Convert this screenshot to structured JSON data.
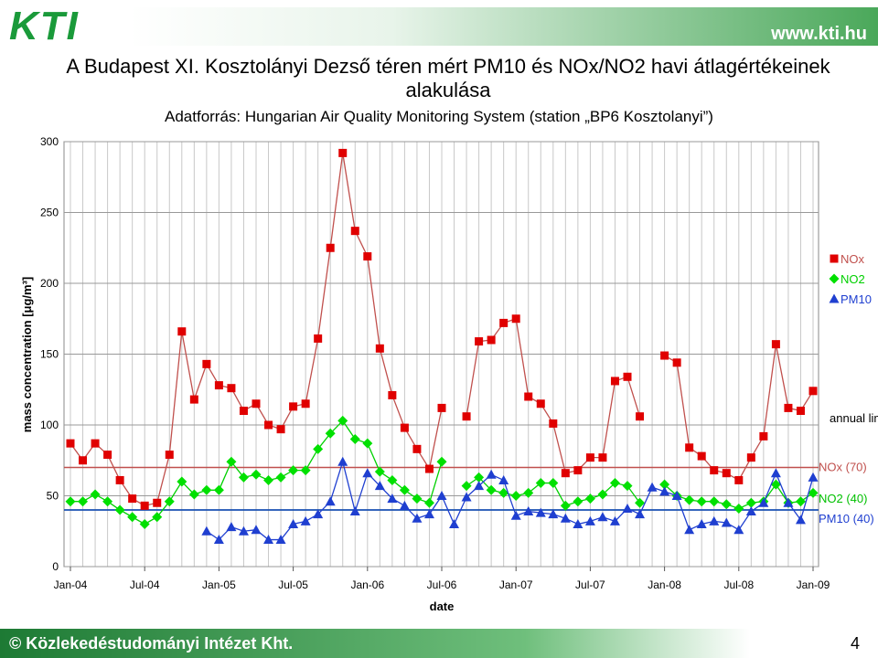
{
  "header": {
    "logo": "KTI",
    "url": "www.kti.hu"
  },
  "title": "A Budapest XI. Kosztolányi Dezső téren mért PM10 és NOx/NO2 havi átlagértékeinek alakulása",
  "source": "Adatforrás: Hungarian Air Quality Monitoring System (station „BP6 Kosztolanyi”)",
  "footer": {
    "copyright": "© Közlekedéstudományi Intézet Kht.",
    "page": "4"
  },
  "chart_data": {
    "type": "line",
    "x_label": "date",
    "y_label": "mass concentration [μg/m³]",
    "categories": [
      "Jan-04",
      null,
      null,
      null,
      null,
      null,
      "Jul-04",
      null,
      null,
      null,
      null,
      null,
      "Jan-05",
      null,
      null,
      null,
      null,
      null,
      "Jul-05",
      null,
      null,
      null,
      null,
      null,
      "Jan-06",
      null,
      null,
      null,
      null,
      null,
      "Jul-06",
      null,
      null,
      null,
      null,
      null,
      "Jan-07",
      null,
      null,
      null,
      null,
      null,
      "Jul-07",
      null,
      null,
      null,
      null,
      null,
      "Jan-08",
      null,
      null,
      null,
      null,
      null,
      "Jul-08",
      null,
      null,
      null,
      null,
      null,
      "Jan-09"
    ],
    "ylim": [
      0,
      300
    ],
    "yticks": [
      0,
      50,
      100,
      150,
      200,
      250,
      300
    ],
    "grid": true,
    "legend": "right",
    "series": [
      {
        "name": "NOx",
        "color": "#e00000",
        "line_color": "#c0504d",
        "marker": "square",
        "values": [
          87,
          75,
          87,
          79,
          61,
          48,
          43,
          45,
          79,
          166,
          118,
          143,
          128,
          126,
          110,
          115,
          100,
          97,
          113,
          115,
          161,
          225,
          292,
          237,
          219,
          154,
          121,
          98,
          83,
          69,
          112,
          null,
          106,
          159,
          160,
          172,
          175,
          120,
          115,
          101,
          66,
          68,
          77,
          77,
          131,
          134,
          106,
          null,
          149,
          144,
          84,
          78,
          68,
          66,
          61,
          77,
          92,
          157,
          112,
          110,
          124
        ]
      },
      {
        "name": "NO2",
        "color": "#00e000",
        "line_color": "#00d000",
        "marker": "diamond",
        "values": [
          46,
          46,
          51,
          46,
          40,
          35,
          30,
          35,
          46,
          60,
          51,
          54,
          54,
          74,
          63,
          65,
          61,
          63,
          68,
          68,
          83,
          94,
          103,
          90,
          87,
          67,
          61,
          54,
          48,
          45,
          74,
          null,
          57,
          63,
          54,
          52,
          50,
          52,
          59,
          59,
          43,
          46,
          48,
          51,
          59,
          57,
          45,
          null,
          58,
          50,
          47,
          46,
          46,
          44,
          41,
          45,
          46,
          58,
          45,
          46,
          52
        ]
      },
      {
        "name": "PM10",
        "color": "#1f3fd0",
        "line_color": "#1f3fd0",
        "marker": "triangle",
        "values": [
          null,
          null,
          null,
          null,
          null,
          null,
          null,
          null,
          null,
          null,
          null,
          25,
          19,
          28,
          25,
          26,
          19,
          19,
          30,
          32,
          37,
          46,
          74,
          39,
          66,
          57,
          48,
          43,
          34,
          37,
          50,
          30,
          49,
          57,
          65,
          61,
          36,
          39,
          38,
          37,
          34,
          30,
          32,
          35,
          32,
          41,
          37,
          56,
          53,
          50,
          26,
          30,
          32,
          31,
          26,
          39,
          45,
          66,
          45,
          33,
          63
        ]
      }
    ],
    "limits_title": "annual limits:",
    "limits": [
      {
        "label": "NOx (70)",
        "value": 70,
        "color": "#c0504d"
      },
      {
        "label": "NO2 (40)",
        "value": 40,
        "color": "#00c000"
      },
      {
        "label": "PM10 (40)",
        "value": 40,
        "color": "#1f3fd0"
      }
    ]
  }
}
